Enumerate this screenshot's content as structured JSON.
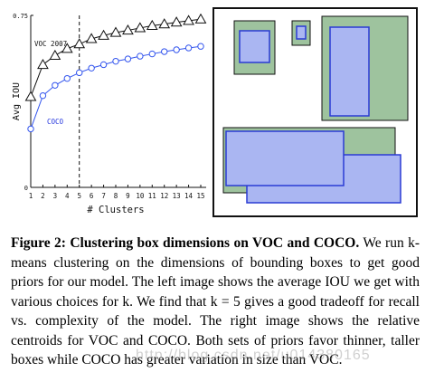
{
  "chart_data": {
    "type": "line",
    "x": [
      1,
      2,
      3,
      4,
      5,
      6,
      7,
      8,
      9,
      10,
      11,
      12,
      13,
      14,
      15
    ],
    "xlabel": "# Clusters",
    "ylabel": "Avg IOU",
    "xlim": [
      1,
      15
    ],
    "ylim": [
      0,
      0.75
    ],
    "ytick_labels": [
      "0",
      "0.75"
    ],
    "series": [
      {
        "name": "VOC 2007",
        "marker": "triangle",
        "color": "#111111",
        "values": [
          0.395,
          0.535,
          0.575,
          0.605,
          0.625,
          0.648,
          0.662,
          0.675,
          0.685,
          0.695,
          0.705,
          0.712,
          0.72,
          0.727,
          0.733
        ]
      },
      {
        "name": "COCO",
        "marker": "circle",
        "color": "#3355ee",
        "values": [
          0.255,
          0.4,
          0.445,
          0.475,
          0.5,
          0.52,
          0.535,
          0.55,
          0.56,
          0.572,
          0.582,
          0.592,
          0.6,
          0.608,
          0.615
        ]
      }
    ],
    "vline_x": 5
  },
  "caption": {
    "label": "Figure 2:",
    "title": "Clustering box dimensions on VOC and COCO.",
    "body": "We run k-means clustering on the dimensions of bounding boxes to get good priors for our model. The left image shows the average IOU we get with various choices for k. We find that k = 5 gives a good tradeoff for recall vs. complexity of the model. The right image shows the relative centroids for VOC and COCO. Both sets of priors favor thinner, taller boxes while COCO has greater variation in size than VOC."
  },
  "watermark": "http://blog.csdn.net/u014380165",
  "colors": {
    "voc_box_fill": "#9ec39e",
    "coco_box_fill": "#aab6f2",
    "coco_box_stroke": "#2a3bd4",
    "panel_border": "#111111"
  }
}
